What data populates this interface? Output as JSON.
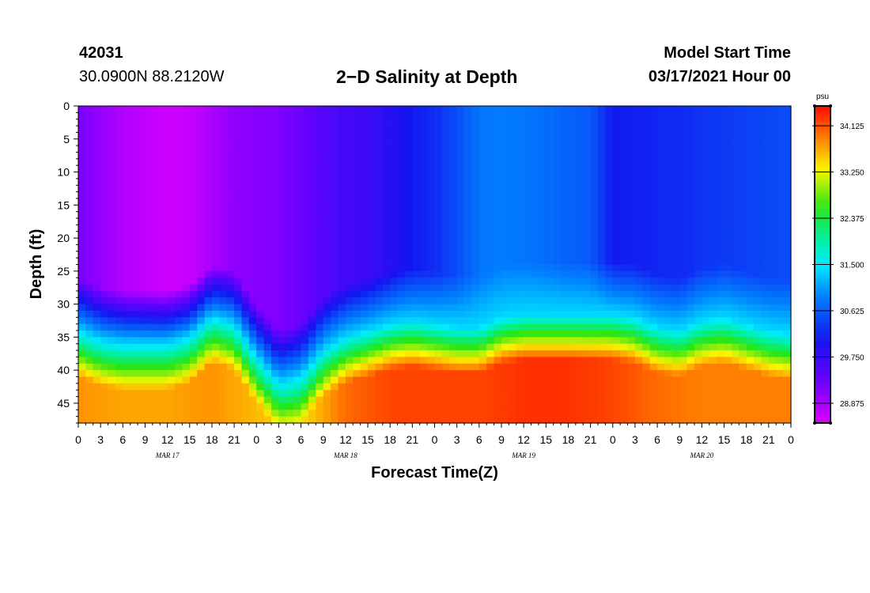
{
  "header": {
    "station_id": "42031",
    "station_location": "30.0900N 88.2120W",
    "title": "2−D Salinity at Depth",
    "model_label": "Model Start Time",
    "model_start": "03/17/2021 Hour 00"
  },
  "chart_data": {
    "type": "heatmap",
    "title": "2−D Salinity at Depth",
    "xlabel": "Forecast Time(Z)",
    "ylabel": "Depth (ft)",
    "x_hours_range": [
      0,
      96
    ],
    "ylim": [
      0,
      48
    ],
    "y_ticks": [
      0,
      5,
      10,
      15,
      20,
      25,
      30,
      35,
      40,
      45
    ],
    "x_tick_labels": [
      "0",
      "3",
      "6",
      "9",
      "12",
      "15",
      "18",
      "21",
      "0",
      "3",
      "6",
      "9",
      "12",
      "15",
      "18",
      "21",
      "0",
      "3",
      "6",
      "9",
      "12",
      "15",
      "18",
      "21",
      "0",
      "3",
      "6",
      "9",
      "12",
      "15",
      "18",
      "21",
      "0"
    ],
    "date_labels": [
      {
        "label": "MAR 17",
        "hour": 12
      },
      {
        "label": "MAR 18",
        "hour": 36
      },
      {
        "label": "MAR 19",
        "hour": 60
      },
      {
        "label": "MAR 20",
        "hour": 84
      }
    ],
    "colorbar": {
      "unit": "psu",
      "range": [
        28.5,
        34.5
      ],
      "ticks": [
        "34.125",
        "33.250",
        "32.375",
        "31.500",
        "30.625",
        "29.750",
        "28.875"
      ],
      "tick_values": [
        34.125,
        33.25,
        32.375,
        31.5,
        30.625,
        29.75,
        28.875
      ]
    },
    "surface_salinity_profile": {
      "hours": [
        0,
        3,
        6,
        9,
        12,
        15,
        18,
        21,
        24,
        27,
        30,
        33,
        36,
        39,
        42,
        45,
        48,
        51,
        54,
        57,
        60,
        63,
        66,
        69,
        72,
        75,
        78,
        81,
        84,
        87,
        90,
        93,
        96
      ],
      "values": [
        29.2,
        29.0,
        28.8,
        28.7,
        28.6,
        28.65,
        28.85,
        29.05,
        29.1,
        29.15,
        29.3,
        29.5,
        29.65,
        29.7,
        29.9,
        30.1,
        30.25,
        30.5,
        30.8,
        30.85,
        30.8,
        30.75,
        30.65,
        30.6,
        30.1,
        30.15,
        30.2,
        30.22,
        30.3,
        30.35,
        30.4,
        30.45,
        30.5
      ]
    },
    "halocline_depth_ft": {
      "hours": [
        0,
        3,
        6,
        9,
        12,
        15,
        18,
        21,
        24,
        27,
        30,
        33,
        36,
        39,
        42,
        45,
        48,
        51,
        54,
        57,
        60,
        63,
        66,
        69,
        72,
        75,
        78,
        81,
        84,
        87,
        90,
        93,
        96
      ],
      "values": [
        34,
        35.5,
        36,
        36,
        36,
        35,
        32,
        33,
        38,
        42,
        41,
        37,
        35,
        34,
        33,
        32.5,
        33,
        33.5,
        33.5,
        32,
        31.5,
        31.5,
        31.5,
        31.5,
        31.5,
        32,
        33.5,
        34,
        32.5,
        32,
        33,
        34,
        34.5
      ]
    },
    "bottom_salinity_profile": {
      "hours": [
        0,
        6,
        12,
        18,
        24,
        30,
        36,
        42,
        48,
        54,
        60,
        66,
        72,
        78,
        84,
        90,
        96
      ],
      "values": [
        33.8,
        33.7,
        33.7,
        33.8,
        33.6,
        33.4,
        34.0,
        34.2,
        34.2,
        34.2,
        34.3,
        34.3,
        34.2,
        34.0,
        33.9,
        33.9,
        33.9
      ]
    }
  }
}
